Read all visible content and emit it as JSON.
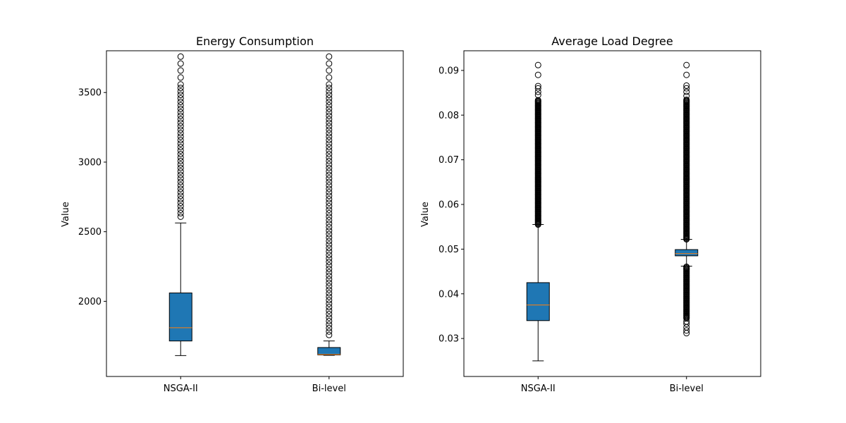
{
  "chart_data": [
    {
      "type": "box",
      "title": "Energy Consumption",
      "xlabel": "",
      "ylabel": "Value",
      "categories": [
        "NSGA-II",
        "Bi-level"
      ],
      "ylim": [
        1460,
        3800
      ],
      "yticks": [
        2000,
        2500,
        3000,
        3500
      ],
      "boxes": [
        {
          "category": "NSGA-II",
          "whisker_low": 1610,
          "q1": 1715,
          "median": 1810,
          "q3": 2060,
          "whisker_high": 2563,
          "outliers": [
            2608,
            2633,
            2658,
            2683,
            2708,
            2733,
            2758,
            2783,
            2808,
            2833,
            2858,
            2883,
            2908,
            2933,
            2958,
            2983,
            3008,
            3033,
            3058,
            3083,
            3108,
            3133,
            3158,
            3183,
            3208,
            3233,
            3258,
            3283,
            3308,
            3333,
            3358,
            3383,
            3408,
            3433,
            3458,
            3483,
            3508,
            3533,
            3558,
            3608,
            3658,
            3708,
            3758
          ]
        },
        {
          "category": "Bi-level",
          "whisker_low": 1612,
          "q1": 1615,
          "median": 1618,
          "q3": 1668,
          "whisker_high": 1715,
          "outliers": [
            1758,
            1783,
            1808,
            1833,
            1858,
            1883,
            1908,
            1933,
            1958,
            1983,
            2008,
            2033,
            2058,
            2083,
            2108,
            2133,
            2158,
            2183,
            2208,
            2233,
            2258,
            2283,
            2308,
            2333,
            2358,
            2383,
            2408,
            2433,
            2458,
            2483,
            2508,
            2533,
            2558,
            2583,
            2608,
            2633,
            2658,
            2683,
            2708,
            2733,
            2758,
            2783,
            2808,
            2833,
            2858,
            2883,
            2908,
            2933,
            2958,
            2983,
            3008,
            3033,
            3058,
            3083,
            3108,
            3133,
            3158,
            3183,
            3208,
            3233,
            3258,
            3283,
            3308,
            3333,
            3358,
            3383,
            3408,
            3433,
            3458,
            3483,
            3508,
            3533,
            3558,
            3608,
            3658,
            3708,
            3758
          ]
        }
      ],
      "colors": {
        "box_fill": "#1f77b4",
        "median": "#ff7f0e",
        "frame": "#000000"
      }
    },
    {
      "type": "box",
      "title": "Average Load Degree",
      "xlabel": "",
      "ylabel": "Value",
      "categories": [
        "NSGA-II",
        "Bi-level"
      ],
      "ylim": [
        0.0215,
        0.0944
      ],
      "yticks": [
        0.03,
        0.04,
        0.05,
        0.06,
        0.07,
        0.08,
        0.09
      ],
      "ytick_labels": [
        "0.03",
        "0.04",
        "0.05",
        "0.06",
        "0.07",
        "0.08",
        "0.09"
      ],
      "boxes": [
        {
          "category": "NSGA-II",
          "whisker_low": 0.025,
          "q1": 0.034,
          "median": 0.0375,
          "q3": 0.0425,
          "whisker_high": 0.0555,
          "outliers_dense_ranges": [
            [
              0.0555,
              0.0835
            ]
          ],
          "outliers": [
            0.0845,
            0.0852,
            0.086,
            0.0865,
            0.089,
            0.0912
          ]
        },
        {
          "category": "Bi-level",
          "whisker_low": 0.0462,
          "q1": 0.0485,
          "median": 0.049,
          "q3": 0.0499,
          "whisker_high": 0.0522,
          "outliers_dense_ranges": [
            [
              0.0345,
              0.0462
            ],
            [
              0.0522,
              0.0835
            ]
          ],
          "outliers": [
            0.0312,
            0.0318,
            0.0325,
            0.0333,
            0.0338,
            0.0843,
            0.0852,
            0.086,
            0.0866,
            0.089,
            0.0912
          ]
        }
      ],
      "colors": {
        "box_fill": "#1f77b4",
        "median": "#ff7f0e",
        "frame": "#000000"
      }
    }
  ]
}
